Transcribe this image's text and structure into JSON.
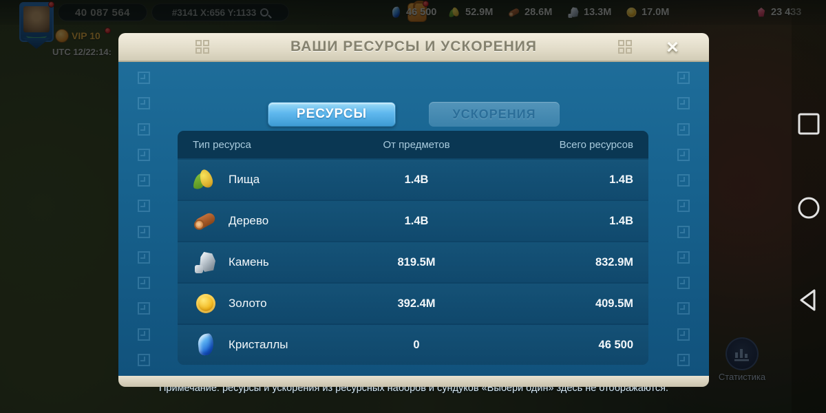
{
  "top_bar": {
    "power": "40 087 564",
    "coordinates": "#3141 X:656 Y:1133",
    "vip_label": "VIP 10",
    "utc_time": "UTC 12/22:14:",
    "resources": [
      {
        "icon": "gem-icon",
        "value": "46 500"
      },
      {
        "icon": "food-icon",
        "value": "52.9M"
      },
      {
        "icon": "wood-icon",
        "value": "28.6M"
      },
      {
        "icon": "stone-icon",
        "value": "13.3M"
      },
      {
        "icon": "gold-icon",
        "value": "17.0M"
      },
      {
        "icon": "token-icon",
        "value": "23 433"
      }
    ]
  },
  "dialog": {
    "title": "ВАШИ РЕСУРСЫ И УСКОРЕНИЯ",
    "close_label": "×",
    "tabs": [
      {
        "label": "РЕСУРСЫ",
        "active": true
      },
      {
        "label": "УСКОРЕНИЯ",
        "active": false
      }
    ],
    "table": {
      "columns": [
        "Тип ресурса",
        "От предметов",
        "Всего ресурсов"
      ],
      "rows": [
        {
          "icon": "corn-icon",
          "name": "Пища",
          "from_items": "1.4B",
          "total": "1.4B"
        },
        {
          "icon": "wood-icon",
          "name": "Дерево",
          "from_items": "1.4B",
          "total": "1.4B"
        },
        {
          "icon": "stone-icon",
          "name": "Камень",
          "from_items": "819.5M",
          "total": "832.9M"
        },
        {
          "icon": "gold-icon",
          "name": "Золото",
          "from_items": "392.4M",
          "total": "409.5M"
        },
        {
          "icon": "gem-icon",
          "name": "Кристаллы",
          "from_items": "0",
          "total": "46 500"
        }
      ]
    },
    "note": "Примечание: ресурсы и ускорения из ресурсных наборов и сундуков «Выбери один» здесь не отображаются."
  },
  "side_panel": {
    "statistics_label": "Статистика"
  },
  "colors": {
    "tab_active": "#5fb8ee",
    "dialog_body": "#17628e",
    "header_beige": "#e3ddca",
    "table_bg": "#0d4468",
    "note_text": "#d6e7f2"
  }
}
